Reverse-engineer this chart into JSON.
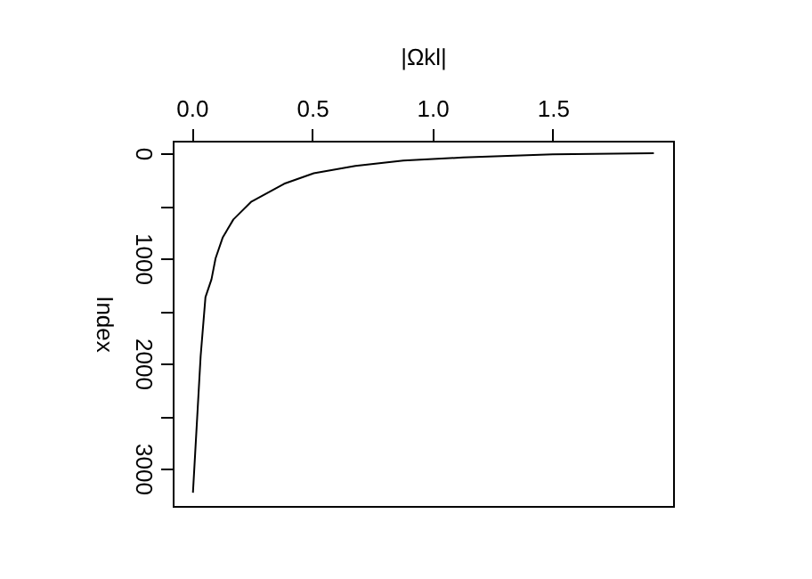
{
  "chart_data": {
    "type": "line",
    "xlabel": "|Ωkl|",
    "ylabel": "Index",
    "x": [
      0.005,
      0.037,
      0.057,
      0.082,
      0.099,
      0.129,
      0.173,
      0.248,
      0.384,
      0.507,
      0.68,
      0.879,
      1.126,
      1.5,
      1.92
    ],
    "series": [
      {
        "color": "#000000",
        "values": [
          3230,
          1930,
          1370,
          1200,
          1000,
          800,
          630,
          460,
          290,
          190,
          120,
          70,
          40,
          10,
          0
        ]
      }
    ],
    "xlim": [
      -0.079,
      2.0
    ],
    "xticks": [
      {
        "value": 0,
        "label": "0.0"
      },
      0.5,
      {
        "value": 1,
        "label": "1.0"
      },
      1.5
    ],
    "ylim": [
      3356,
      -119
    ],
    "yticks": [
      0,
      {
        "value": 500,
        "label": null
      },
      {
        "value": 1000,
        "label": "1000"
      },
      {
        "value": 1500,
        "label": null
      },
      {
        "value": 2000,
        "label": "2000"
      },
      {
        "value": 2500,
        "label": null
      },
      {
        "value": 3000,
        "label": "3000"
      }
    ],
    "grid": false,
    "marker": "none",
    "line_style": "solid"
  }
}
